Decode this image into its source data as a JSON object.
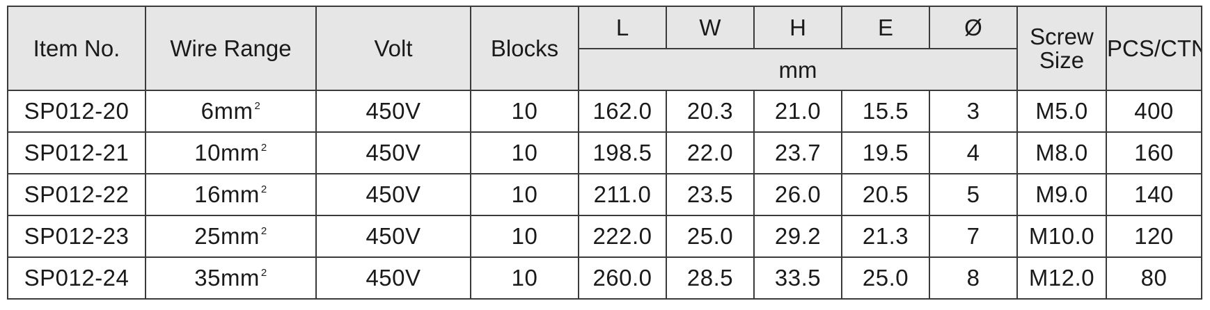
{
  "table": {
    "headers": {
      "item_no": "Item No.",
      "wire_range": "Wire Range",
      "volt": "Volt",
      "blocks": "Blocks",
      "L": "L",
      "W": "W",
      "H": "H",
      "E": "E",
      "dia": "Ø",
      "unit": "mm",
      "screw_size_line1": "Screw",
      "screw_size_line2": "Size",
      "pcs_ctn": "PCS/CTN"
    },
    "superscript": "2",
    "rows": [
      {
        "item": "SP012-20",
        "wire": "6mm",
        "volt": "450V",
        "blocks": "10",
        "L": "162.0",
        "W": "20.3",
        "H": "21.0",
        "E": "15.5",
        "dia": "3",
        "screw": "M5.0",
        "pcs": "400"
      },
      {
        "item": "SP012-21",
        "wire": "10mm",
        "volt": "450V",
        "blocks": "10",
        "L": "198.5",
        "W": "22.0",
        "H": "23.7",
        "E": "19.5",
        "dia": "4",
        "screw": "M8.0",
        "pcs": "160"
      },
      {
        "item": "SP012-22",
        "wire": "16mm",
        "volt": "450V",
        "blocks": "10",
        "L": "211.0",
        "W": "23.5",
        "H": "26.0",
        "E": "20.5",
        "dia": "5",
        "screw": "M9.0",
        "pcs": "140"
      },
      {
        "item": "SP012-23",
        "wire": "25mm",
        "volt": "450V",
        "blocks": "10",
        "L": "222.0",
        "W": "25.0",
        "H": "29.2",
        "E": "21.3",
        "dia": "7",
        "screw": "M10.0",
        "pcs": "120"
      },
      {
        "item": "SP012-24",
        "wire": "35mm",
        "volt": "450V",
        "blocks": "10",
        "L": "260.0",
        "W": "28.5",
        "H": "33.5",
        "E": "25.0",
        "dia": "8",
        "screw": "M12.0",
        "pcs": "80"
      }
    ]
  }
}
